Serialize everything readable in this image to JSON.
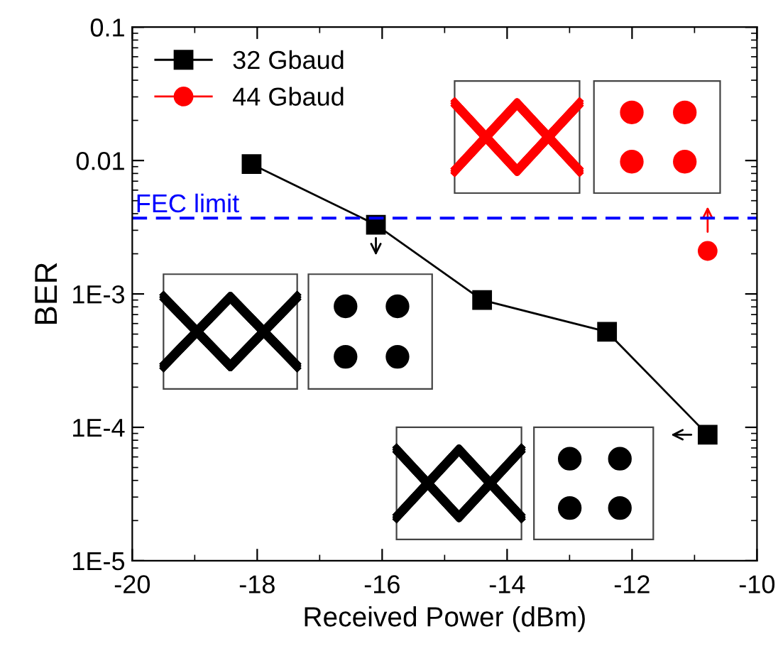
{
  "chart_data": {
    "type": "line",
    "xlabel": "Received Power (dBm)",
    "ylabel": "BER",
    "xlim": [
      -20,
      -10
    ],
    "xticks": [
      -20,
      -18,
      -16,
      -14,
      -12,
      -10
    ],
    "ylim": [
      1e-05,
      0.1
    ],
    "yticks": [
      {
        "value": 1e-05,
        "label": "1E-5"
      },
      {
        "value": 0.0001,
        "label": "1E-4"
      },
      {
        "value": 0.001,
        "label": "1E-3"
      },
      {
        "value": 0.01,
        "label": "0.01"
      },
      {
        "value": 0.1,
        "label": "0.1"
      }
    ],
    "log": true,
    "grid": false,
    "legend": "top left",
    "line_style": "solid",
    "series": [
      {
        "name": "32 Gbaud",
        "color": "#000000",
        "marker": "square",
        "x": [
          -18.09,
          -16.1,
          -14.4,
          -12.4,
          -10.79
        ],
        "values": [
          0.0094,
          0.0033,
          0.0009,
          0.00052,
          8.8e-05
        ]
      },
      {
        "name": "44 Gbaud",
        "color": "#ff0000",
        "marker": "circle",
        "x": [
          -10.79
        ],
        "values": [
          0.0021
        ]
      }
    ],
    "ref_lines": [
      {
        "axis": "y",
        "value": 0.0037,
        "label": "FEC limit",
        "color": "#0000ff",
        "line_style": "dashed"
      }
    ]
  }
}
